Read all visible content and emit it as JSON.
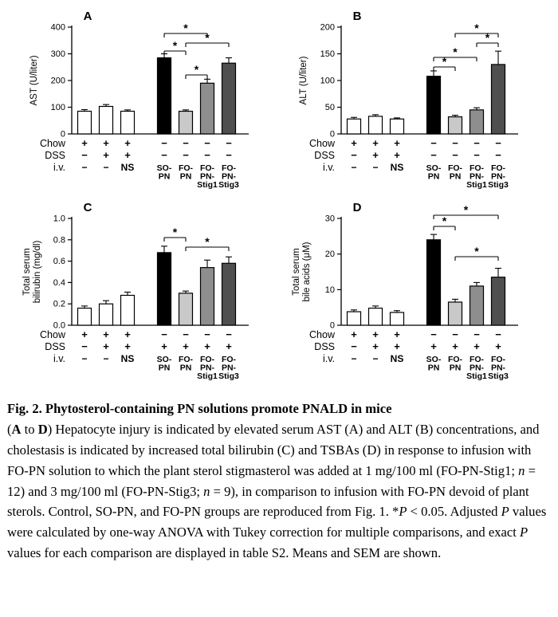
{
  "palette": {
    "white": "#ffffff",
    "black": "#000000",
    "light_gray": "#c9c9c9",
    "mid_gray": "#8e8e8e",
    "dark_gray": "#4f4f4f",
    "axis": "#000000"
  },
  "row_labels": {
    "chow": "Chow",
    "dss": "DSS",
    "iv": "i.v."
  },
  "chart_data": [
    {
      "panel": "A",
      "type": "bar",
      "ylabel_lines": [
        "AST (U/liter)"
      ],
      "ymax": 400,
      "yticks": [
        "0",
        "100",
        "200",
        "300",
        "400"
      ],
      "groups": [
        {
          "chow": "+",
          "dss": "−",
          "iv": "−",
          "value": 85,
          "sem": 6,
          "fill": "white"
        },
        {
          "chow": "+",
          "dss": "+",
          "iv": "−",
          "value": 103,
          "sem": 7,
          "fill": "white"
        },
        {
          "chow": "+",
          "dss": "+",
          "iv": "NS",
          "value": 85,
          "sem": 5,
          "fill": "white"
        },
        {
          "chow": "−",
          "dss": "−",
          "iv": "SO-\nPN",
          "value": 285,
          "sem": 15,
          "fill": "black"
        },
        {
          "chow": "−",
          "dss": "−",
          "iv": "FO-\nPN",
          "value": 85,
          "sem": 5,
          "fill": "light_gray"
        },
        {
          "chow": "−",
          "dss": "−",
          "iv": "FO-\nPN-\nStig1",
          "value": 190,
          "sem": 15,
          "fill": "mid_gray"
        },
        {
          "chow": "−",
          "dss": "−",
          "iv": "FO-\nPN-\nStig3",
          "value": 265,
          "sem": 20,
          "fill": "dark_gray"
        }
      ],
      "brackets": [
        {
          "from": 4,
          "to": 6,
          "y": 32,
          "label": "*"
        },
        {
          "from": 5,
          "to": 7,
          "y": 44,
          "label": "*"
        },
        {
          "from": 4,
          "to": 5,
          "y": 54,
          "label": "*"
        },
        {
          "from": 5,
          "to": 6,
          "y": 84,
          "label": "*"
        }
      ]
    },
    {
      "panel": "B",
      "type": "bar",
      "ylabel_lines": [
        "ALT (U/liter)"
      ],
      "ymax": 200,
      "yticks": [
        "0",
        "50",
        "100",
        "150",
        "200"
      ],
      "groups": [
        {
          "chow": "+",
          "dss": "−",
          "iv": "−",
          "value": 28,
          "sem": 3,
          "fill": "white"
        },
        {
          "chow": "+",
          "dss": "+",
          "iv": "−",
          "value": 33,
          "sem": 3,
          "fill": "white"
        },
        {
          "chow": "+",
          "dss": "+",
          "iv": "NS",
          "value": 28,
          "sem": 2,
          "fill": "white"
        },
        {
          "chow": "−",
          "dss": "−",
          "iv": "SO-\nPN",
          "value": 108,
          "sem": 10,
          "fill": "black"
        },
        {
          "chow": "−",
          "dss": "−",
          "iv": "FO-\nPN",
          "value": 32,
          "sem": 3,
          "fill": "light_gray"
        },
        {
          "chow": "−",
          "dss": "−",
          "iv": "FO-\nPN-\nStig1",
          "value": 45,
          "sem": 4,
          "fill": "mid_gray"
        },
        {
          "chow": "−",
          "dss": "−",
          "iv": "FO-\nPN-\nStig3",
          "value": 130,
          "sem": 25,
          "fill": "dark_gray"
        }
      ],
      "brackets": [
        {
          "from": 5,
          "to": 7,
          "y": 32,
          "label": "*"
        },
        {
          "from": 6,
          "to": 7,
          "y": 44,
          "label": "*"
        },
        {
          "from": 4,
          "to": 6,
          "y": 62,
          "label": "*"
        },
        {
          "from": 4,
          "to": 5,
          "y": 74,
          "label": "*"
        }
      ]
    },
    {
      "panel": "C",
      "type": "bar",
      "ylabel_lines": [
        "Total serum",
        "bilirubin (mg/dl)"
      ],
      "ymax": 1.0,
      "yticks": [
        "0.0",
        "0.2",
        "0.4",
        "0.6",
        "0.8",
        "1.0"
      ],
      "groups": [
        {
          "chow": "+",
          "dss": "−",
          "iv": "−",
          "value": 0.16,
          "sem": 0.02,
          "fill": "white"
        },
        {
          "chow": "+",
          "dss": "+",
          "iv": "−",
          "value": 0.2,
          "sem": 0.03,
          "fill": "white"
        },
        {
          "chow": "+",
          "dss": "+",
          "iv": "NS",
          "value": 0.28,
          "sem": 0.03,
          "fill": "white"
        },
        {
          "chow": "−",
          "dss": "+",
          "iv": "SO-\nPN",
          "value": 0.68,
          "sem": 0.06,
          "fill": "black"
        },
        {
          "chow": "−",
          "dss": "+",
          "iv": "FO-\nPN",
          "value": 0.3,
          "sem": 0.02,
          "fill": "light_gray"
        },
        {
          "chow": "−",
          "dss": "+",
          "iv": "FO-\nPN-\nStig1",
          "value": 0.54,
          "sem": 0.07,
          "fill": "mid_gray"
        },
        {
          "chow": "−",
          "dss": "+",
          "iv": "FO-\nPN-\nStig3",
          "value": 0.58,
          "sem": 0.06,
          "fill": "dark_gray"
        }
      ],
      "brackets": [
        {
          "from": 4,
          "to": 5,
          "y": 48,
          "label": "*"
        },
        {
          "from": 5,
          "to": 7,
          "y": 60,
          "label": "*"
        }
      ]
    },
    {
      "panel": "D",
      "type": "bar",
      "ylabel_lines": [
        "Total serum",
        "bile acids (μM)"
      ],
      "ymax": 30,
      "yticks": [
        "0",
        "10",
        "20",
        "30"
      ],
      "groups": [
        {
          "chow": "+",
          "dss": "−",
          "iv": "−",
          "value": 3.8,
          "sem": 0.5,
          "fill": "white"
        },
        {
          "chow": "+",
          "dss": "+",
          "iv": "−",
          "value": 4.8,
          "sem": 0.6,
          "fill": "white"
        },
        {
          "chow": "+",
          "dss": "+",
          "iv": "NS",
          "value": 3.6,
          "sem": 0.5,
          "fill": "white"
        },
        {
          "chow": "−",
          "dss": "+",
          "iv": "SO-\nPN",
          "value": 24,
          "sem": 1.5,
          "fill": "black"
        },
        {
          "chow": "−",
          "dss": "+",
          "iv": "FO-\nPN",
          "value": 6.5,
          "sem": 0.8,
          "fill": "light_gray"
        },
        {
          "chow": "−",
          "dss": "+",
          "iv": "FO-\nPN-\nStig1",
          "value": 11,
          "sem": 1.0,
          "fill": "mid_gray"
        },
        {
          "chow": "−",
          "dss": "+",
          "iv": "FO-\nPN-\nStig3",
          "value": 13.5,
          "sem": 2.5,
          "fill": "dark_gray"
        }
      ],
      "brackets": [
        {
          "from": 4,
          "to": 7,
          "y": 20,
          "label": "*"
        },
        {
          "from": 4,
          "to": 5,
          "y": 34,
          "label": "*"
        },
        {
          "from": 5,
          "to": 7,
          "y": 72,
          "label": "*"
        }
      ]
    }
  ],
  "caption": {
    "segments": [
      {
        "text": "Fig. 2. Phytosterol-containing PN solutions promote PNALD in mice",
        "bold": true
      },
      {
        "br": true
      },
      {
        "text": "("
      },
      {
        "text": "A",
        "bold": true
      },
      {
        "text": " to "
      },
      {
        "text": "D",
        "bold": true
      },
      {
        "text": ") Hepatocyte injury is indicated by elevated serum AST (A) and ALT (B) concentrations, and cholestasis is indicated by increased total bilirubin (C) and TSBAs (D) in response to infusion with FO-PN solution to which the plant sterol stigmasterol was added at 1 mg/100 ml (FO-PN-Stig1; "
      },
      {
        "text": "n",
        "italic": true
      },
      {
        "text": " = 12) and 3 mg/100 ml (FO-PN-Stig3; "
      },
      {
        "text": "n",
        "italic": true
      },
      {
        "text": " = 9), in comparison to infusion with FO-PN devoid of plant sterols. Control, SO-PN, and FO-PN groups are reproduced from Fig. 1. *"
      },
      {
        "text": "P",
        "italic": true
      },
      {
        "text": " < 0.05. Adjusted "
      },
      {
        "text": "P",
        "italic": true
      },
      {
        "text": " values were calculated by one-way ANOVA with Tukey correction for multiple comparisons, and exact "
      },
      {
        "text": "P",
        "italic": true
      },
      {
        "text": " values for each comparison are displayed in table S2. Means and SEM are shown."
      }
    ]
  }
}
